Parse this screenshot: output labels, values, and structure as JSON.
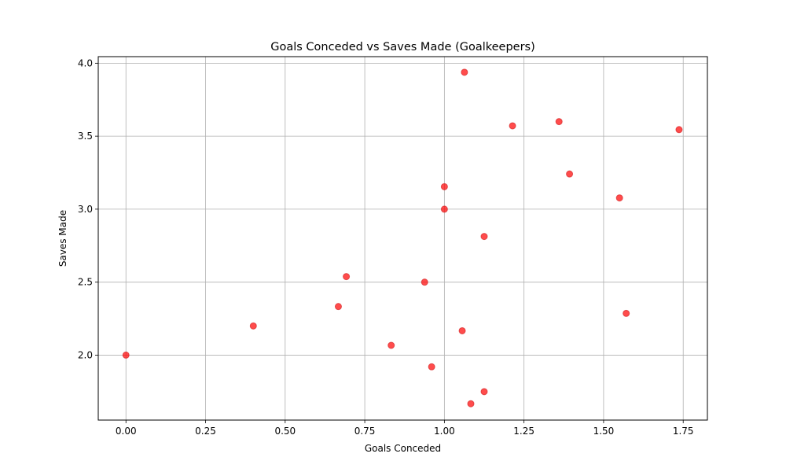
{
  "chart_data": {
    "type": "scatter",
    "title": "Goals Conceded vs Saves Made (Goalkeepers)",
    "xlabel": "Goals Conceded",
    "ylabel": "Saves Made",
    "xlim": [
      -0.087,
      1.826
    ],
    "ylim": [
      1.555,
      4.045
    ],
    "xticks": [
      0.0,
      0.25,
      0.5,
      0.75,
      1.0,
      1.25,
      1.5,
      1.75
    ],
    "xtick_labels": [
      "0.00",
      "0.25",
      "0.50",
      "0.75",
      "1.00",
      "1.25",
      "1.50",
      "1.75"
    ],
    "yticks": [
      2.0,
      2.5,
      3.0,
      3.5,
      4.0
    ],
    "ytick_labels": [
      "2.0",
      "2.5",
      "3.0",
      "3.5",
      "4.0"
    ],
    "grid": true,
    "marker_color": "#ff0000",
    "marker_edge_color": "#d62728",
    "marker_alpha": 0.7,
    "points": [
      {
        "x": 0.0,
        "y": 2.0
      },
      {
        "x": 0.4,
        "y": 2.2
      },
      {
        "x": 0.667,
        "y": 2.333
      },
      {
        "x": 0.692,
        "y": 2.538
      },
      {
        "x": 0.833,
        "y": 2.067
      },
      {
        "x": 0.938,
        "y": 2.5
      },
      {
        "x": 0.96,
        "y": 1.92
      },
      {
        "x": 1.0,
        "y": 3.0
      },
      {
        "x": 1.0,
        "y": 3.154
      },
      {
        "x": 1.056,
        "y": 2.167
      },
      {
        "x": 1.063,
        "y": 3.938
      },
      {
        "x": 1.083,
        "y": 1.667
      },
      {
        "x": 1.125,
        "y": 2.813
      },
      {
        "x": 1.125,
        "y": 1.75
      },
      {
        "x": 1.214,
        "y": 3.571
      },
      {
        "x": 1.36,
        "y": 3.6
      },
      {
        "x": 1.393,
        "y": 3.241
      },
      {
        "x": 1.55,
        "y": 3.077
      },
      {
        "x": 1.571,
        "y": 2.286
      },
      {
        "x": 1.737,
        "y": 3.545
      }
    ]
  }
}
